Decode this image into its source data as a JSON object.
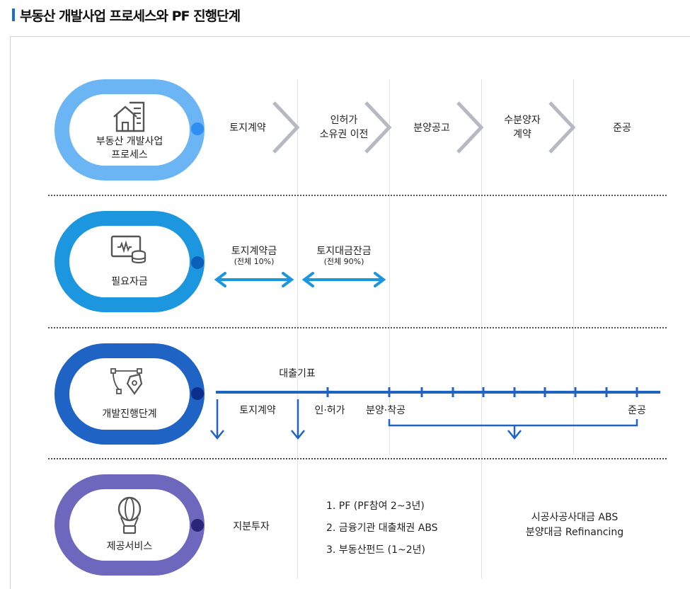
{
  "title": "부동산 개발사업 프로세스와 PF 진행단계",
  "rows": {
    "process": {
      "label": "부동산 개발사업\n프로세스",
      "steps": [
        "토지계약",
        "인허가\n소유권 이전",
        "분양공고",
        "수분양자\n계약",
        "준공"
      ],
      "color": "#6bb5f5"
    },
    "funds": {
      "label": "필요자금",
      "items": [
        {
          "name": "토지계약금",
          "note": "(전체 10%)"
        },
        {
          "name": "토지대금잔금",
          "note": "(전체 90%)"
        }
      ],
      "color": "#1d96e0"
    },
    "stage": {
      "label": "개발진행단계",
      "timeline_label": "대출기표",
      "markers": [
        "토지계약",
        "인·허가",
        "분양·착공",
        "준공"
      ],
      "color": "#1f63c5"
    },
    "service": {
      "label": "제공서비스",
      "equity": "지분투자",
      "list": [
        "1. PF (PF참여 2~3년)",
        "2. 금융기관 대출채권 ABS",
        "3. 부동산펀드 (1~2년)"
      ],
      "refi": [
        "시공사공사대금 ABS",
        "분양대금 Refinancing"
      ],
      "color": "#6d68bd"
    }
  },
  "icons": [
    "building-icon",
    "wallet-coin-icon",
    "pen-tool-icon",
    "balloon-icon"
  ]
}
